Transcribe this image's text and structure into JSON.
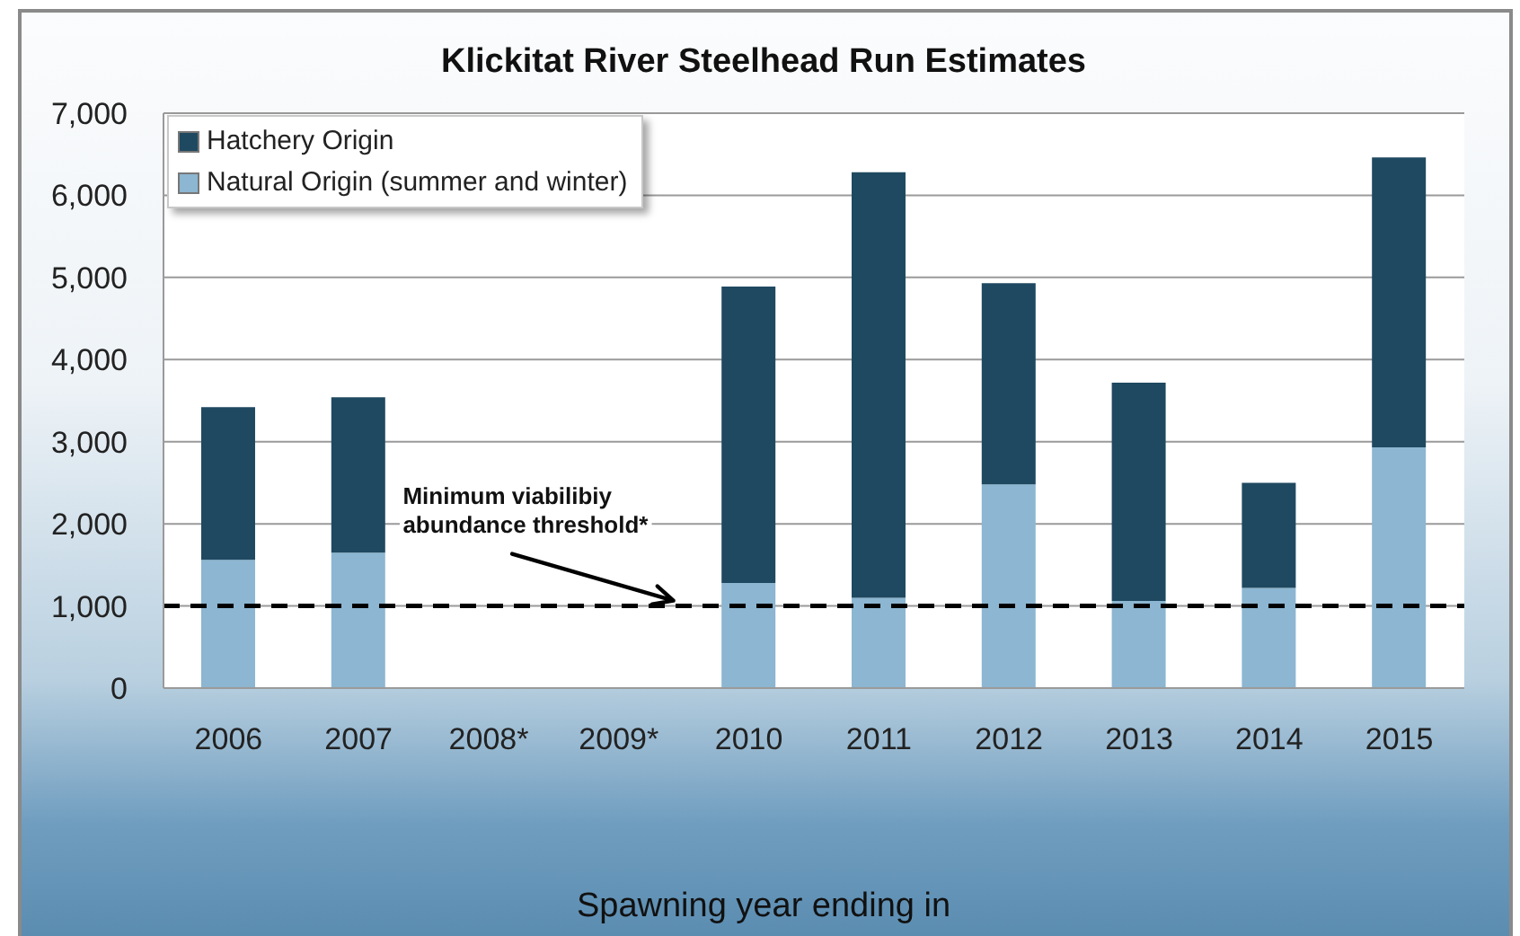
{
  "chart_data": {
    "type": "bar",
    "title": "Klickitat River Steelhead Run Estimates",
    "xlabel": "Spawning year ending in",
    "categories": [
      "2006",
      "2007",
      "2008*",
      "2009*",
      "2010",
      "2011",
      "2012",
      "2013",
      "2014",
      "2015"
    ],
    "stacked": true,
    "series": [
      {
        "name": "Natural Origin (summer and winter)",
        "color": "#8cb6d1",
        "values": [
          1560,
          1650,
          null,
          null,
          1280,
          1100,
          2480,
          1060,
          1220,
          2930
        ]
      },
      {
        "name": "Hatchery Origin",
        "color": "#1f4960",
        "values": [
          1860,
          1890,
          null,
          null,
          3610,
          5180,
          2450,
          2660,
          1280,
          3530
        ]
      }
    ],
    "ylim": [
      0,
      7000
    ],
    "yticks": [
      0,
      {
        "value": 1000,
        "label": "1,000"
      },
      {
        "value": 2000,
        "label": "2,000"
      },
      {
        "value": 3000,
        "label": "3,000"
      },
      {
        "value": 4000,
        "label": "4,000"
      },
      {
        "value": 5000,
        "label": "5,000"
      },
      {
        "value": 6000,
        "label": "6,000"
      },
      {
        "value": 7000,
        "label": "7,000"
      }
    ],
    "grid": "y",
    "legend": "top left",
    "ref_lines": [
      {
        "axis": "y",
        "value": 1000,
        "label": "Minimum viabilibiy abundance threshold*",
        "color": "#000000",
        "line_style": "dashed"
      }
    ]
  }
}
